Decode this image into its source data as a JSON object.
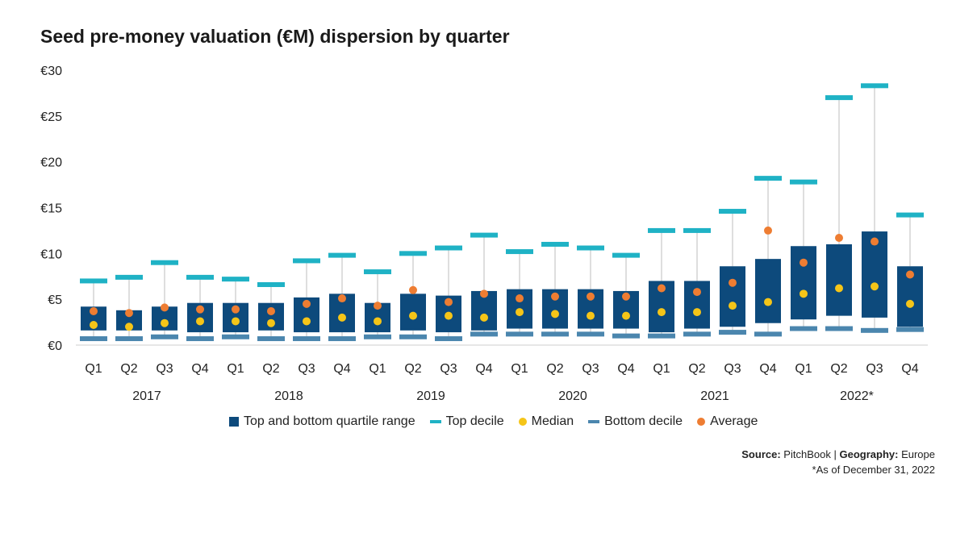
{
  "title": "Seed pre-money valuation (€M) dispersion by quarter",
  "legend": {
    "quartile": "Top and bottom quartile range",
    "top_decile": "Top decile",
    "median": "Median",
    "bottom_decile": "Bottom decile",
    "average": "Average"
  },
  "source": {
    "label": "Source:",
    "value": "PitchBook",
    "sep": "|",
    "geo_label": "Geography:",
    "geo_value": "Europe",
    "note": "*As of December 31, 2022"
  },
  "colors": {
    "quartile": "#0d4a7c",
    "top_decile": "#1fb2c5",
    "median": "#f5c518",
    "bottom_decile": "#4b86ae",
    "average": "#ee7d32",
    "whisker": "#bdbdbd",
    "axis": "#cfcfcf"
  },
  "chart_data": {
    "type": "box",
    "y_tick_labels": [
      "€0",
      "€5",
      "€10",
      "€15",
      "€20",
      "€25",
      "€30"
    ],
    "ylim": [
      0,
      30
    ],
    "years": [
      "2017",
      "2018",
      "2019",
      "2020",
      "2021",
      "2022*"
    ],
    "quarters": [
      "Q1",
      "Q2",
      "Q3",
      "Q4",
      "Q1",
      "Q2",
      "Q3",
      "Q4",
      "Q1",
      "Q2",
      "Q3",
      "Q4",
      "Q1",
      "Q2",
      "Q3",
      "Q4",
      "Q1",
      "Q2",
      "Q3",
      "Q4",
      "Q1",
      "Q2",
      "Q3",
      "Q4"
    ],
    "top_decile": [
      7.0,
      7.4,
      9.0,
      7.4,
      7.2,
      6.6,
      9.2,
      9.8,
      8.0,
      10.0,
      10.6,
      12.0,
      10.2,
      11.0,
      10.6,
      9.8,
      12.5,
      12.5,
      14.6,
      18.2,
      17.8,
      27.0,
      28.3,
      14.2
    ],
    "q3": [
      4.2,
      3.8,
      4.2,
      4.6,
      4.6,
      4.6,
      5.2,
      5.6,
      4.6,
      5.6,
      5.4,
      5.9,
      6.1,
      6.1,
      6.1,
      5.9,
      7.0,
      7.0,
      8.6,
      9.4,
      10.8,
      11.0,
      12.4,
      8.6
    ],
    "q1": [
      1.6,
      1.6,
      1.6,
      1.4,
      1.4,
      1.6,
      1.4,
      1.4,
      1.4,
      1.6,
      1.4,
      1.6,
      1.8,
      1.8,
      1.8,
      1.8,
      1.4,
      1.8,
      2.0,
      2.4,
      2.8,
      3.2,
      3.0,
      2.0
    ],
    "median": [
      2.2,
      2.0,
      2.4,
      2.6,
      2.6,
      2.4,
      2.6,
      3.0,
      2.6,
      3.2,
      3.2,
      3.0,
      3.6,
      3.4,
      3.2,
      3.2,
      3.6,
      3.6,
      4.3,
      4.7,
      5.6,
      6.2,
      6.4,
      4.5
    ],
    "average": [
      3.7,
      3.5,
      4.1,
      3.9,
      3.9,
      3.7,
      4.5,
      5.1,
      4.3,
      6.0,
      4.7,
      5.6,
      5.1,
      5.3,
      5.3,
      5.3,
      6.2,
      5.8,
      6.8,
      12.5,
      9.0,
      11.7,
      11.3,
      7.7
    ],
    "bottom_decile": [
      0.7,
      0.7,
      0.9,
      0.7,
      0.9,
      0.7,
      0.7,
      0.7,
      0.9,
      0.9,
      0.7,
      1.2,
      1.2,
      1.2,
      1.2,
      1.0,
      1.0,
      1.2,
      1.4,
      1.2,
      1.8,
      1.8,
      1.6,
      1.7
    ]
  }
}
